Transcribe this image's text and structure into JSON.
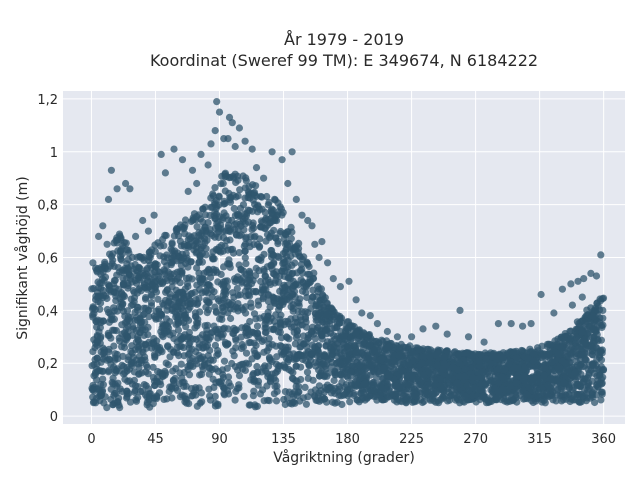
{
  "chart_data": {
    "type": "scatter",
    "title_lines": [
      "År 1979 - 2019",
      "Koordinat (Sweref 99 TM): E 349674, N 6184222"
    ],
    "xlabel": "Vågriktning (grader)",
    "ylabel": "Signifikant våghöjd (m)",
    "xlim": [
      -20,
      375
    ],
    "ylim": [
      -0.03,
      1.23
    ],
    "x_ticks": [
      0,
      45,
      90,
      135,
      180,
      225,
      270,
      315,
      360
    ],
    "x_tick_labels": [
      "0",
      "45",
      "90",
      "135",
      "180",
      "225",
      "270",
      "315",
      "360"
    ],
    "y_ticks": [
      0,
      0.2,
      0.4,
      0.6,
      0.8,
      1.0,
      1.2
    ],
    "y_tick_labels": [
      "0",
      "0,2",
      "0,4",
      "0,6",
      "0,8",
      "1",
      "1,2"
    ],
    "grid": true,
    "marker_color": "#2f566d",
    "plot_background": "#e5e8f0",
    "envelope": {
      "x": [
        0,
        10,
        20,
        30,
        40,
        50,
        60,
        70,
        80,
        90,
        100,
        110,
        120,
        130,
        140,
        150,
        160,
        170,
        180,
        190,
        200,
        210,
        220,
        230,
        240,
        250,
        260,
        270,
        280,
        290,
        300,
        310,
        320,
        330,
        340,
        350,
        360
      ],
      "y_min": [
        0.04,
        0.03,
        0.03,
        0.03,
        0.03,
        0.03,
        0.03,
        0.03,
        0.03,
        0.03,
        0.03,
        0.03,
        0.03,
        0.03,
        0.03,
        0.04,
        0.04,
        0.04,
        0.04,
        0.05,
        0.05,
        0.05,
        0.05,
        0.05,
        0.05,
        0.05,
        0.05,
        0.05,
        0.05,
        0.05,
        0.05,
        0.05,
        0.05,
        0.05,
        0.05,
        0.05,
        0.05
      ],
      "y_max": [
        0.52,
        0.62,
        0.7,
        0.6,
        0.62,
        0.68,
        0.72,
        0.76,
        0.8,
        0.9,
        0.95,
        0.9,
        0.85,
        0.82,
        0.72,
        0.62,
        0.5,
        0.4,
        0.36,
        0.32,
        0.3,
        0.28,
        0.27,
        0.26,
        0.25,
        0.25,
        0.24,
        0.24,
        0.24,
        0.24,
        0.25,
        0.26,
        0.27,
        0.3,
        0.35,
        0.42,
        0.47
      ]
    },
    "outliers": [
      {
        "x": 88,
        "y": 1.19
      },
      {
        "x": 90,
        "y": 1.15
      },
      {
        "x": 97,
        "y": 1.13
      },
      {
        "x": 99,
        "y": 1.11
      },
      {
        "x": 104,
        "y": 1.09
      },
      {
        "x": 87,
        "y": 1.08
      },
      {
        "x": 93,
        "y": 1.05
      },
      {
        "x": 96,
        "y": 1.05
      },
      {
        "x": 84,
        "y": 1.03
      },
      {
        "x": 101,
        "y": 1.02
      },
      {
        "x": 108,
        "y": 1.04
      },
      {
        "x": 113,
        "y": 1.01
      },
      {
        "x": 127,
        "y": 1.0
      },
      {
        "x": 141,
        "y": 1.0
      },
      {
        "x": 134,
        "y": 0.97
      },
      {
        "x": 58,
        "y": 1.01
      },
      {
        "x": 49,
        "y": 0.99
      },
      {
        "x": 64,
        "y": 0.97
      },
      {
        "x": 77,
        "y": 0.99
      },
      {
        "x": 52,
        "y": 0.92
      },
      {
        "x": 71,
        "y": 0.93
      },
      {
        "x": 82,
        "y": 0.95
      },
      {
        "x": 24,
        "y": 0.88
      },
      {
        "x": 14,
        "y": 0.93
      },
      {
        "x": 18,
        "y": 0.86
      },
      {
        "x": 27,
        "y": 0.86
      },
      {
        "x": 12,
        "y": 0.82
      },
      {
        "x": 5,
        "y": 0.68
      },
      {
        "x": 8,
        "y": 0.72
      },
      {
        "x": 36,
        "y": 0.74
      },
      {
        "x": 44,
        "y": 0.76
      },
      {
        "x": 148,
        "y": 0.76
      },
      {
        "x": 155,
        "y": 0.72
      },
      {
        "x": 162,
        "y": 0.66
      },
      {
        "x": 160,
        "y": 0.6
      },
      {
        "x": 166,
        "y": 0.58
      },
      {
        "x": 170,
        "y": 0.52
      },
      {
        "x": 175,
        "y": 0.49
      },
      {
        "x": 181,
        "y": 0.51
      },
      {
        "x": 186,
        "y": 0.44
      },
      {
        "x": 190,
        "y": 0.39
      },
      {
        "x": 196,
        "y": 0.38
      },
      {
        "x": 201,
        "y": 0.35
      },
      {
        "x": 208,
        "y": 0.32
      },
      {
        "x": 215,
        "y": 0.3
      },
      {
        "x": 225,
        "y": 0.3
      },
      {
        "x": 233,
        "y": 0.33
      },
      {
        "x": 242,
        "y": 0.34
      },
      {
        "x": 250,
        "y": 0.31
      },
      {
        "x": 259,
        "y": 0.4
      },
      {
        "x": 265,
        "y": 0.3
      },
      {
        "x": 276,
        "y": 0.28
      },
      {
        "x": 286,
        "y": 0.35
      },
      {
        "x": 295,
        "y": 0.35
      },
      {
        "x": 303,
        "y": 0.34
      },
      {
        "x": 309,
        "y": 0.35
      },
      {
        "x": 316,
        "y": 0.46
      },
      {
        "x": 325,
        "y": 0.39
      },
      {
        "x": 331,
        "y": 0.48
      },
      {
        "x": 337,
        "y": 0.5
      },
      {
        "x": 342,
        "y": 0.51
      },
      {
        "x": 346,
        "y": 0.52
      },
      {
        "x": 351,
        "y": 0.54
      },
      {
        "x": 355,
        "y": 0.53
      },
      {
        "x": 358,
        "y": 0.61
      },
      {
        "x": 345,
        "y": 0.45
      },
      {
        "x": 338,
        "y": 0.42
      },
      {
        "x": 1,
        "y": 0.58
      },
      {
        "x": 3,
        "y": 0.56
      },
      {
        "x": 11,
        "y": 0.65
      },
      {
        "x": 31,
        "y": 0.68
      },
      {
        "x": 40,
        "y": 0.7
      },
      {
        "x": 68,
        "y": 0.85
      },
      {
        "x": 74,
        "y": 0.88
      },
      {
        "x": 116,
        "y": 0.94
      },
      {
        "x": 121,
        "y": 0.9
      },
      {
        "x": 138,
        "y": 0.88
      },
      {
        "x": 144,
        "y": 0.82
      },
      {
        "x": 152,
        "y": 0.74
      },
      {
        "x": 157,
        "y": 0.65
      }
    ]
  }
}
